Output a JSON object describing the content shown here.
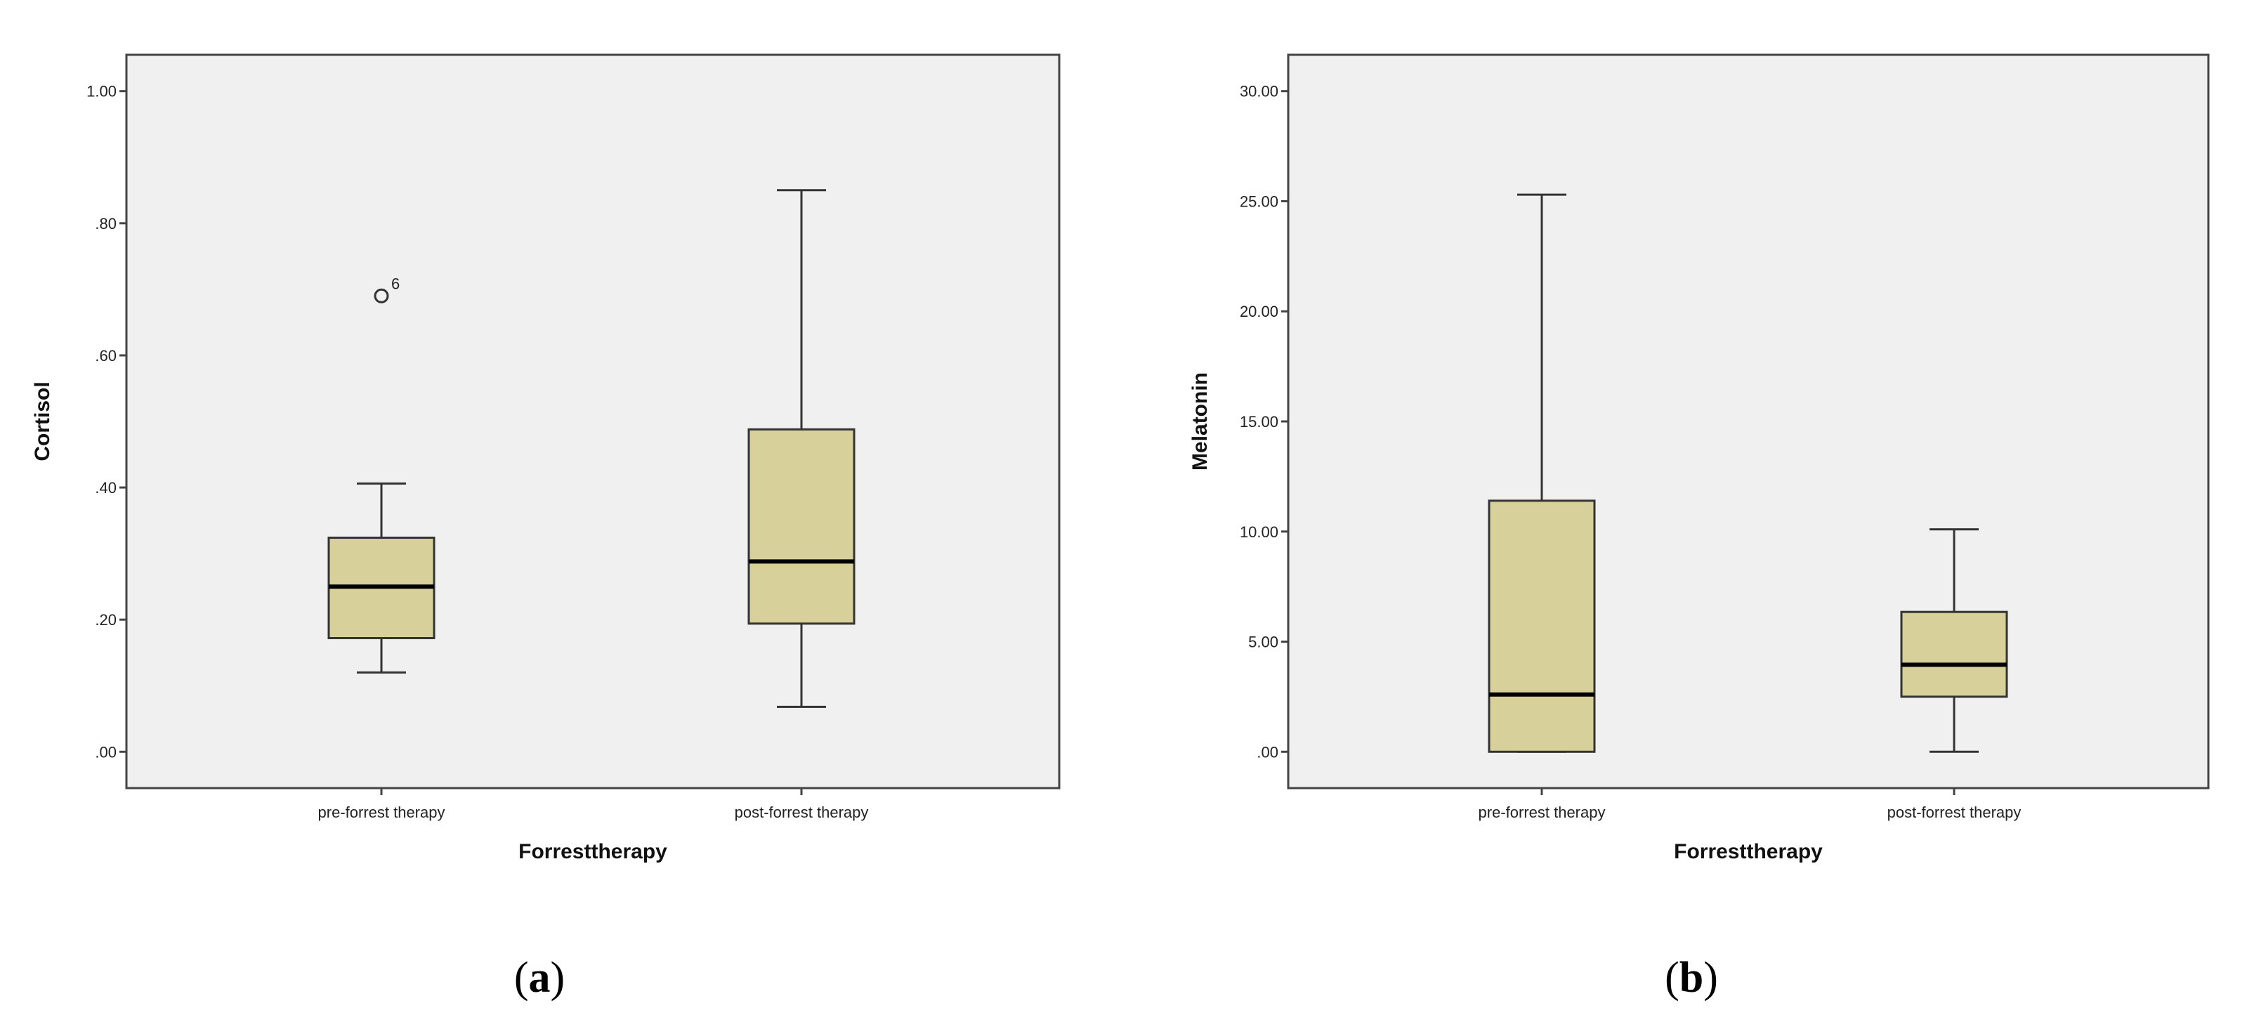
{
  "colors": {
    "plot_background": "#f0f0f0",
    "box_fill": "#d8d09a",
    "box_stroke": "#333333",
    "median": "#000000",
    "frame": "#444444"
  },
  "chart_data": [
    {
      "type": "boxplot",
      "panel_label": "a",
      "xlabel": "Forresttherapy",
      "ylabel": "Cortisol",
      "ylim": [
        -0.055,
        1.055
      ],
      "yticks": [
        0.0,
        0.2,
        0.4,
        0.6,
        0.8,
        1.0
      ],
      "ytick_labels": [
        ".00",
        ".20",
        ".40",
        ".60",
        ".80",
        "1.00"
      ],
      "grid": false,
      "categories": [
        "pre-forrest therapy",
        "post-forrest therapy"
      ],
      "boxes": [
        {
          "category": "pre-forrest therapy",
          "whisker_low": 0.12,
          "q1": 0.172,
          "median": 0.25,
          "q3": 0.324,
          "whisker_high": 0.406,
          "outliers": [
            {
              "value": 0.69,
              "label": "6"
            }
          ]
        },
        {
          "category": "post-forrest therapy",
          "whisker_low": 0.068,
          "q1": 0.194,
          "median": 0.288,
          "q3": 0.488,
          "whisker_high": 0.85,
          "outliers": []
        }
      ]
    },
    {
      "type": "boxplot",
      "panel_label": "b",
      "xlabel": "Forresttherapy",
      "ylabel": "Melatonin",
      "ylim": [
        -1.65,
        31.65
      ],
      "yticks": [
        0,
        5,
        10,
        15,
        20,
        25,
        30
      ],
      "ytick_labels": [
        ".00",
        "5.00",
        "10.00",
        "15.00",
        "20.00",
        "25.00",
        "30.00"
      ],
      "grid": false,
      "categories": [
        "pre-forrest therapy",
        "post-forrest therapy"
      ],
      "boxes": [
        {
          "category": "pre-forrest therapy",
          "whisker_low": 0.0,
          "q1": 0.0,
          "median": 2.6,
          "q3": 11.4,
          "whisker_high": 25.3,
          "outliers": []
        },
        {
          "category": "post-forrest therapy",
          "whisker_low": 0.0,
          "q1": 2.5,
          "median": 3.95,
          "q3": 6.35,
          "whisker_high": 10.1,
          "outliers": []
        }
      ]
    }
  ]
}
